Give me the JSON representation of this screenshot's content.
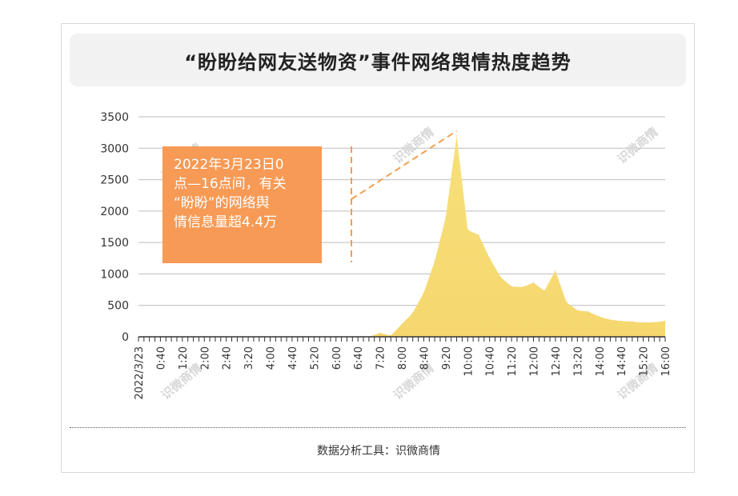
{
  "title": "“盼盼给网友送物资”事件网络舆情热度趋势",
  "footer": "数据分析工具：识微商情",
  "watermark": "识微商情",
  "callout": {
    "lines": [
      "2022年3月23日0",
      "点—16点间，有关",
      "“盼盼”的网络舆",
      "情信息量超4.4万"
    ]
  },
  "colors": {
    "area_top": "#f7e07a",
    "area_bottom": "#f5d76e",
    "callout": "#f79a55",
    "dash": "#f0a050"
  },
  "chart_data": {
    "type": "area",
    "title": "“盼盼给网友送物资”事件网络舆情热度趋势",
    "xlabel": "",
    "ylabel": "",
    "ylim": [
      0,
      3500
    ],
    "yticks": [
      0,
      500,
      1000,
      1500,
      2000,
      2500,
      3000,
      3500
    ],
    "xtick_labels": [
      "2022/3/23",
      "0:40",
      "1:20",
      "2:00",
      "2:40",
      "3:20",
      "4:00",
      "4:40",
      "5:20",
      "6:00",
      "6:40",
      "7:20",
      "8:00",
      "8:40",
      "9:20",
      "10:00",
      "10:40",
      "11:20",
      "12:00",
      "12:40",
      "13:20",
      "14:00",
      "14:40",
      "15:20",
      "16:00"
    ],
    "series": [
      {
        "x": [
          "0:00",
          "0:20",
          "0:40",
          "1:00",
          "1:20",
          "1:40",
          "2:00",
          "2:20",
          "2:40",
          "3:00",
          "3:20",
          "3:40",
          "4:00",
          "4:20",
          "4:40",
          "5:00",
          "5:20",
          "5:40",
          "6:00",
          "6:20",
          "6:40",
          "7:00",
          "7:20",
          "7:40",
          "8:00",
          "8:20",
          "8:40",
          "9:00",
          "9:20",
          "9:40",
          "10:00",
          "10:20",
          "10:40",
          "11:00",
          "11:20",
          "11:40",
          "12:00",
          "12:20",
          "12:40",
          "13:00",
          "13:20",
          "13:40",
          "14:00",
          "14:20",
          "14:40",
          "15:00",
          "15:20",
          "15:40",
          "16:00"
        ],
        "values": [
          0,
          0,
          0,
          0,
          0,
          0,
          0,
          0,
          0,
          0,
          0,
          0,
          0,
          0,
          0,
          0,
          0,
          0,
          0,
          0,
          0,
          0,
          60,
          20,
          200,
          380,
          700,
          1200,
          1900,
          3200,
          1700,
          1620,
          1250,
          950,
          800,
          790,
          860,
          730,
          1050,
          550,
          420,
          400,
          320,
          270,
          250,
          240,
          225,
          230,
          250
        ]
      }
    ],
    "annotation": "2022年3月23日0点—16点间，有关“盼盼”的网络舆情信息量超4.4万",
    "grid": "horizontal",
    "legend": "none"
  }
}
